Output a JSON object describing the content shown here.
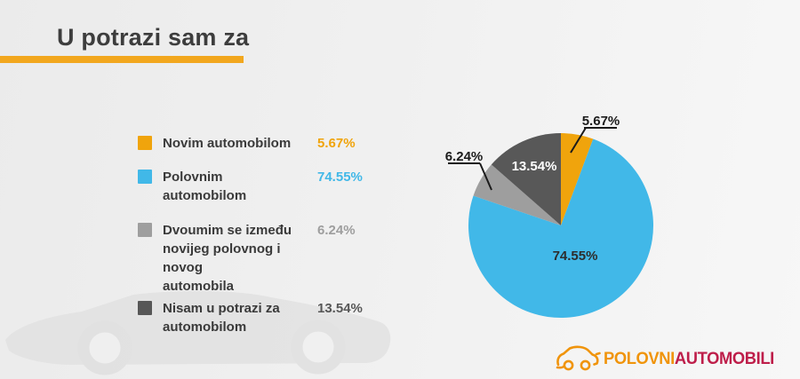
{
  "page": {
    "title": "U potrazi sam za"
  },
  "legend": {
    "items": [
      {
        "label": "Novim automobilom",
        "value": "5.67%",
        "color": "#F0A40C"
      },
      {
        "label": "Polovnim automobilom",
        "value": "74.55%",
        "color": "#41B8E8"
      },
      {
        "label": "Dvoumim se između\nnovijeg polovnog i novog\nautomobila",
        "value": "6.24%",
        "color": "#9E9E9E"
      },
      {
        "label": "Nisam u potrazi za\nautomobilom",
        "value": "13.54%",
        "color": "#575757"
      }
    ]
  },
  "chart_data": {
    "type": "pie",
    "title": "U potrazi sam za",
    "categories": [
      "Novim automobilom",
      "Polovnim automobilom",
      "Dvoumim se između novijeg polovnog i novog automobila",
      "Nisam u potrazi za automobilom"
    ],
    "values": [
      5.67,
      74.55,
      6.24,
      13.54
    ],
    "labels": [
      "5.67%",
      "74.55%",
      "6.24%",
      "13.54%"
    ],
    "colors": [
      "#F0A40C",
      "#41B8E8",
      "#9E9E9E",
      "#585858"
    ],
    "start_angle_deg": 0,
    "direction": "clockwise",
    "legend_position": "left",
    "inside_label_colors": {
      "74.55%": "#2d2d2d",
      "13.54%": "#ffffff"
    }
  },
  "logo": {
    "brand_first": "POLOVNI",
    "brand_second": "AUTOMOBILI"
  },
  "colors": {
    "title_text": "#3d3d3d",
    "accent_bar": "#f2a71e",
    "background_left": "#ebebeb",
    "background_right": "#f7f7f7",
    "logo_orange": "#f0940b",
    "logo_red": "#be1e4a"
  }
}
